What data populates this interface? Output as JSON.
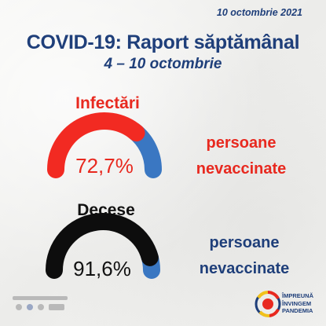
{
  "header": {
    "date": "10 octombrie 2021",
    "title": "COVID-19: Raport săptămânal",
    "subtitle": "4 – 10 octombrie"
  },
  "chart_data": [
    {
      "type": "gauge",
      "title": "Infectări",
      "value": 72.7,
      "value_label": "72,7%",
      "annotation_line1": "persoane",
      "annotation_line2": "nevaccinate",
      "colors": {
        "value": "#f22a22",
        "rest": "#3a77c2"
      }
    },
    {
      "type": "gauge",
      "title": "Decese",
      "value": 91.6,
      "value_label": "91,6%",
      "annotation_line1": "persoane",
      "annotation_line2": "nevaccinate",
      "colors": {
        "value": "#0d0d0d",
        "rest": "#3a77c2"
      }
    }
  ],
  "footer": {
    "logo_right": {
      "line1": "ÎMPREUNĂ",
      "line2": "ÎNVINGEM",
      "line3": "PANDEMIA"
    },
    "logos_left_icon": "partner-logos",
    "logo_right_icon": "ro-vaccinare-logo"
  },
  "colors": {
    "title": "#1f3f7a",
    "infections": "#e8291f",
    "deaths": "#111111",
    "blue": "#3a77c2"
  }
}
